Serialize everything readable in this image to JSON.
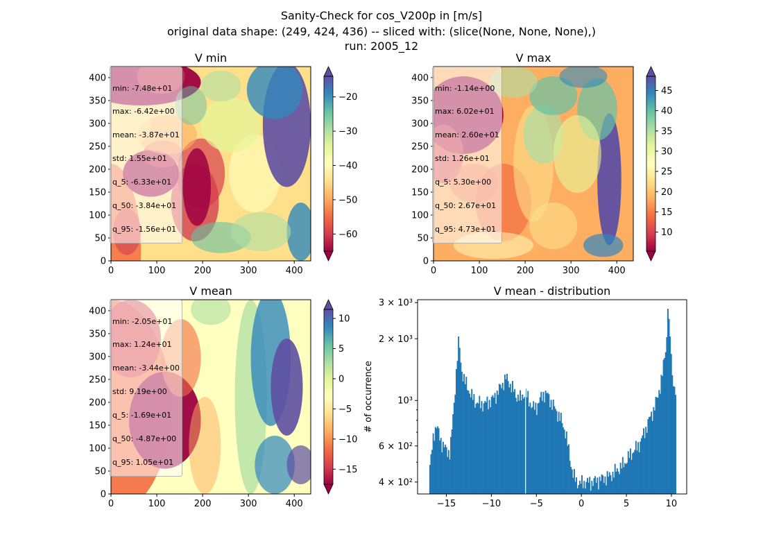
{
  "figure": {
    "title_lines": [
      "Sanity-Check for cos_V200p in [m/s]",
      "original data shape: (249, 424, 436) -- sliced with: (slice(None, None, None),)",
      "run: 2005_12"
    ]
  },
  "colors": {
    "spectral": [
      "#9e0142",
      "#d53e4f",
      "#f46d43",
      "#fdae61",
      "#fee08b",
      "#ffffbf",
      "#e6f598",
      "#abdda4",
      "#66c2a5",
      "#3288bd",
      "#5e4fa2"
    ],
    "histogram_bar": "#1f77b4"
  },
  "panels": [
    {
      "key": "vmin",
      "title": "V min",
      "stats": [
        "min: -7.48e+01",
        "max: -6.42e+00",
        "mean: -3.87e+01",
        "std: 1.55e+01",
        "q_5: -6.33e+01",
        "q_50: -3.84e+01",
        "q_95: -1.56e+01"
      ],
      "colorbar": {
        "range": [
          -65,
          -14
        ],
        "ticks": [
          -60,
          -50,
          -40,
          -30,
          -20
        ]
      }
    },
    {
      "key": "vmax",
      "title": "V max",
      "stats": [
        "min: -1.14e+00",
        "max: 6.02e+01",
        "mean: 2.60e+01",
        "std: 1.26e+01",
        "q_5: 5.30e+00",
        "q_50: 2.67e+01",
        "q_95: 4.73e+01"
      ],
      "colorbar": {
        "range": [
          5.3,
          48.5
        ],
        "ticks": [
          10,
          15,
          20,
          25,
          30,
          35,
          40,
          45
        ]
      }
    },
    {
      "key": "vmean",
      "title": "V mean",
      "stats": [
        "min: -2.05e+01",
        "max: 1.24e+01",
        "mean: -3.44e+00",
        "std: 9.19e+00",
        "q_5: -1.69e+01",
        "q_50: -4.87e+00",
        "q_95: 1.05e+01"
      ],
      "colorbar": {
        "range": [
          -17.5,
          11.5
        ],
        "ticks": [
          -15,
          -10,
          -5,
          0,
          5,
          10
        ]
      }
    }
  ],
  "map_axes": {
    "xlim": [
      0,
      436
    ],
    "ylim": [
      0,
      424
    ],
    "xticks": [
      0,
      100,
      200,
      300,
      400
    ],
    "yticks": [
      0,
      50,
      100,
      150,
      200,
      250,
      300,
      350,
      400
    ]
  },
  "chart_data": {
    "type": "bar",
    "title": "V mean - distribution",
    "xlabel": "",
    "ylabel": "# of occurrence",
    "xlim": [
      -18.2,
      11.7
    ],
    "ylim": [
      350,
      3100
    ],
    "yscale": "log",
    "xticks": [
      -15,
      -10,
      -5,
      0,
      5,
      10
    ],
    "yticks": [
      {
        "value": 400,
        "label": "4 × 10²"
      },
      {
        "value": 600,
        "label": "6 × 10²"
      },
      {
        "value": 1000,
        "label": "10³"
      },
      {
        "value": 2000,
        "label": "2 × 10³"
      },
      {
        "value": 3000,
        "label": "3 × 10³"
      }
    ],
    "anchors": [
      [
        -16.9,
        470
      ],
      [
        -16.7,
        520
      ],
      [
        -16.5,
        640
      ],
      [
        -16.3,
        720
      ],
      [
        -16.1,
        760
      ],
      [
        -15.9,
        700
      ],
      [
        -15.7,
        650
      ],
      [
        -15.5,
        620
      ],
      [
        -15.3,
        600
      ],
      [
        -15.0,
        570
      ],
      [
        -14.6,
        560
      ],
      [
        -14.2,
        900
      ],
      [
        -14.0,
        1200
      ],
      [
        -13.8,
        1600
      ],
      [
        -13.6,
        2000
      ],
      [
        -13.4,
        1500
      ],
      [
        -13.2,
        1350
      ],
      [
        -13.0,
        1250
      ],
      [
        -12.6,
        1150
      ],
      [
        -12.2,
        1050
      ],
      [
        -11.8,
        990
      ],
      [
        -11.2,
        960
      ],
      [
        -10.6,
        970
      ],
      [
        -10.0,
        1000
      ],
      [
        -9.4,
        1080
      ],
      [
        -8.8,
        1200
      ],
      [
        -8.4,
        1290
      ],
      [
        -8.0,
        1220
      ],
      [
        -7.6,
        1130
      ],
      [
        -7.2,
        1050
      ],
      [
        -6.8,
        1020
      ],
      [
        -6.4,
        1080
      ],
      [
        -6.2,
        1080
      ],
      [
        -5.8,
        1000
      ],
      [
        -5.4,
        920
      ],
      [
        -5.0,
        930
      ],
      [
        -4.6,
        1010
      ],
      [
        -4.2,
        1080
      ],
      [
        -3.8,
        1070
      ],
      [
        -3.4,
        990
      ],
      [
        -3.0,
        920
      ],
      [
        -2.6,
        860
      ],
      [
        -2.2,
        790
      ],
      [
        -1.8,
        710
      ],
      [
        -1.5,
        600
      ],
      [
        -1.2,
        500
      ],
      [
        -0.9,
        430
      ],
      [
        -0.5,
        400
      ],
      [
        0.0,
        395
      ],
      [
        0.5,
        400
      ],
      [
        1.0,
        398
      ],
      [
        1.5,
        405
      ],
      [
        2.0,
        410
      ],
      [
        2.5,
        418
      ],
      [
        3.0,
        425
      ],
      [
        3.5,
        440
      ],
      [
        4.0,
        460
      ],
      [
        4.5,
        480
      ],
      [
        5.0,
        510
      ],
      [
        5.5,
        550
      ],
      [
        6.0,
        580
      ],
      [
        6.5,
        620
      ],
      [
        7.0,
        700
      ],
      [
        7.5,
        800
      ],
      [
        8.0,
        900
      ],
      [
        8.5,
        1050
      ],
      [
        9.0,
        1350
      ],
      [
        9.3,
        1700
      ],
      [
        9.6,
        2300
      ],
      [
        9.8,
        2300
      ],
      [
        10.0,
        1500
      ],
      [
        10.2,
        1250
      ],
      [
        10.4,
        1100
      ]
    ],
    "spike": [
      9.6,
      2800
    ],
    "gap_at": -6.25
  }
}
